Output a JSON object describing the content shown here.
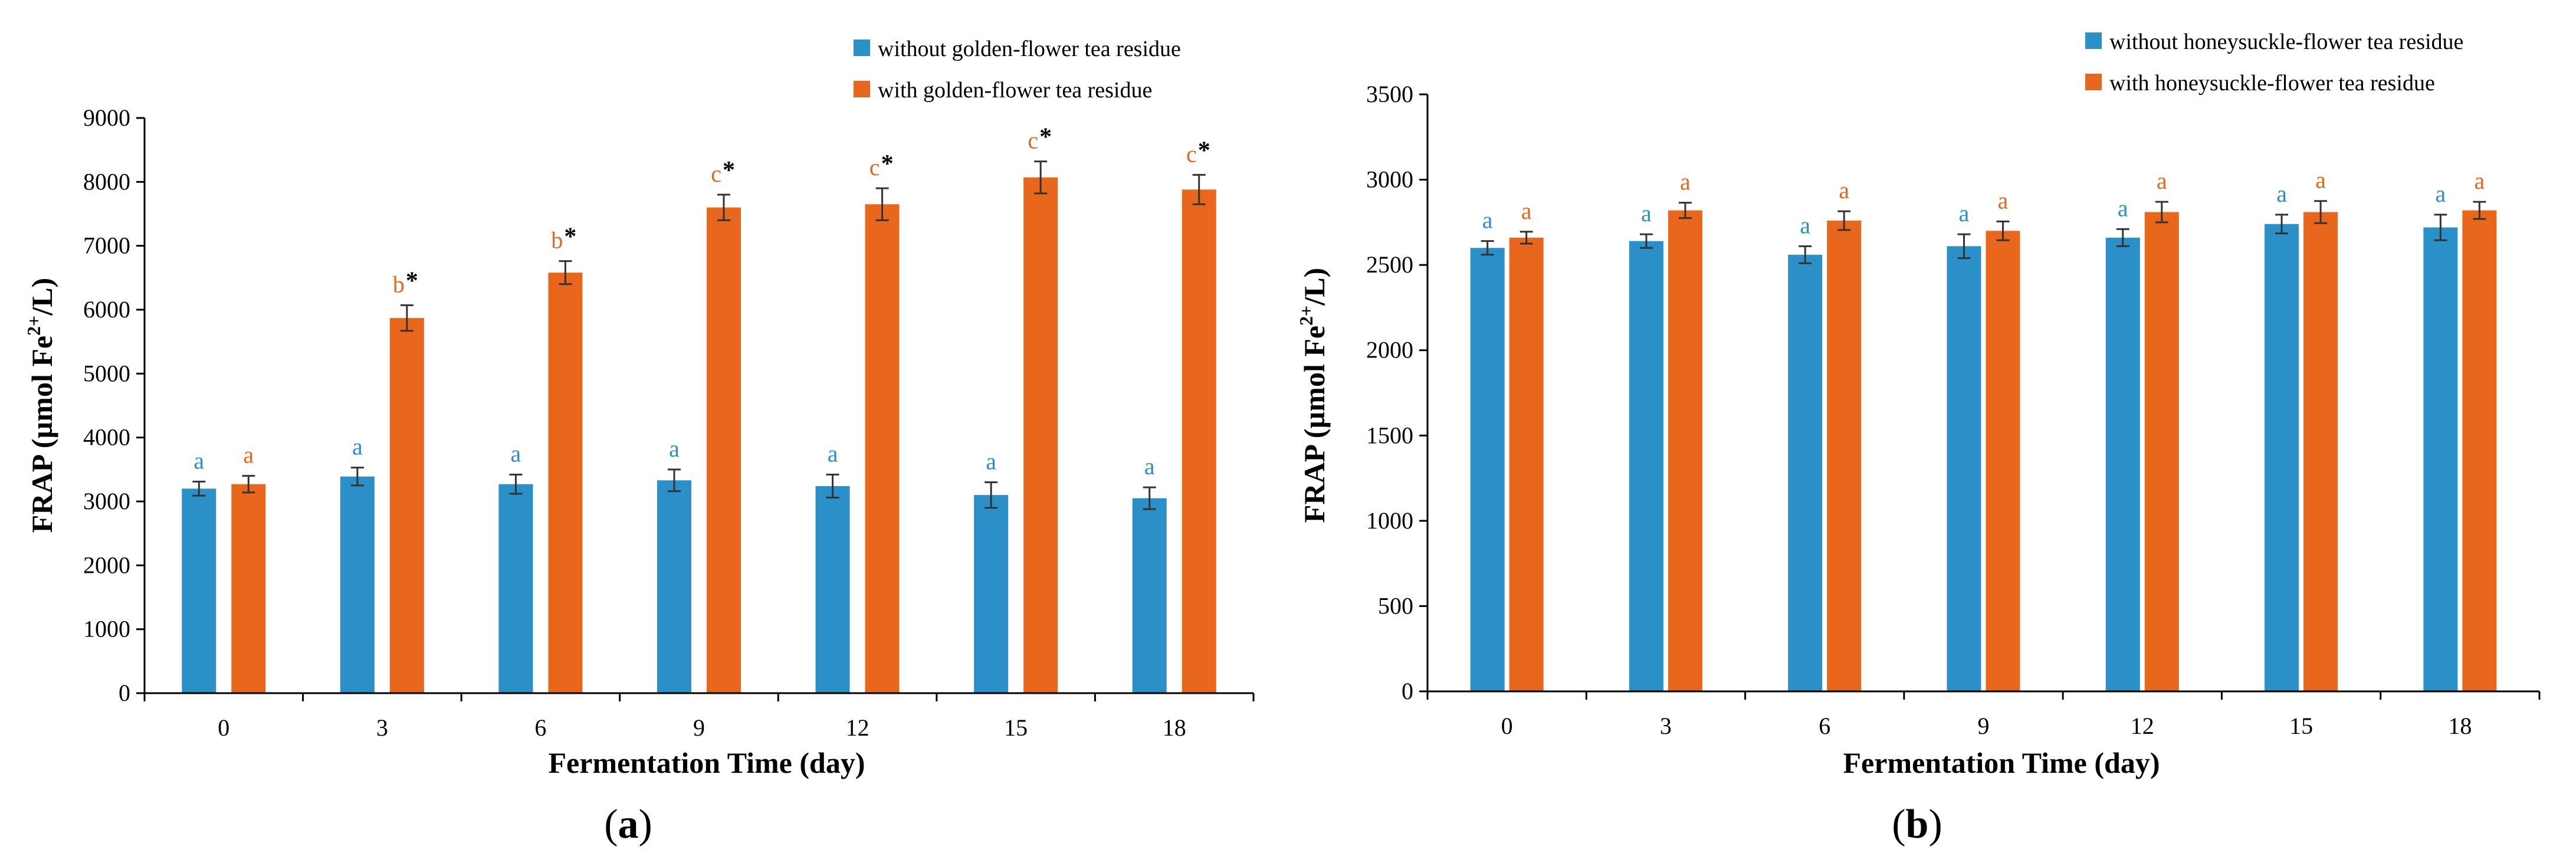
{
  "colors": {
    "without": "#2b8fc8",
    "with": "#e8671c"
  },
  "chart_data": [
    {
      "type": "bar",
      "panel_label": "a",
      "title": "",
      "xlabel": "Fermentation Time (day)",
      "ylabel_prefix": "FRAP (µmol Fe",
      "ylabel_sup": "2+",
      "ylabel_suffix": "/L)",
      "ylim": [
        0,
        9000
      ],
      "yticks": [
        0,
        1000,
        2000,
        3000,
        4000,
        5000,
        6000,
        7000,
        8000,
        9000
      ],
      "legend_position": "top-right",
      "categories": [
        "0",
        "3",
        "6",
        "9",
        "12",
        "15",
        "18"
      ],
      "series": [
        {
          "name": "without golden-flower tea residue",
          "color_key": "without",
          "values": [
            3200,
            3390,
            3270,
            3330,
            3240,
            3100,
            3050
          ],
          "errors": [
            110,
            140,
            150,
            170,
            180,
            200,
            170
          ],
          "letters": [
            "a",
            "a",
            "a",
            "a",
            "a",
            "a",
            "a"
          ],
          "stars": [
            false,
            false,
            false,
            false,
            false,
            false,
            false
          ]
        },
        {
          "name": "with golden-flower tea residue",
          "color_key": "with",
          "values": [
            3270,
            5870,
            6580,
            7600,
            7650,
            8070,
            7880
          ],
          "errors": [
            130,
            200,
            180,
            200,
            250,
            250,
            230
          ],
          "letters": [
            "a",
            "b",
            "b",
            "c",
            "c",
            "c",
            "c"
          ],
          "stars": [
            false,
            true,
            true,
            true,
            true,
            true,
            true
          ]
        }
      ]
    },
    {
      "type": "bar",
      "panel_label": "b",
      "title": "",
      "xlabel": "Fermentation Time (day)",
      "ylabel_prefix": "FRAP (µmol Fe",
      "ylabel_sup": "2+",
      "ylabel_suffix": "/L)",
      "ylim": [
        0,
        3500
      ],
      "yticks": [
        0,
        500,
        1000,
        1500,
        2000,
        2500,
        3000,
        3500
      ],
      "legend_position": "top-right",
      "categories": [
        "0",
        "3",
        "6",
        "9",
        "12",
        "15",
        "18"
      ],
      "series": [
        {
          "name": "without honeysuckle-flower tea residue",
          "color_key": "without",
          "values": [
            2600,
            2640,
            2560,
            2610,
            2660,
            2740,
            2720
          ],
          "errors": [
            40,
            40,
            50,
            70,
            50,
            55,
            75
          ],
          "letters": [
            "a",
            "a",
            "a",
            "a",
            "a",
            "a",
            "a"
          ],
          "stars": [
            false,
            false,
            false,
            false,
            false,
            false,
            false
          ]
        },
        {
          "name": "with honeysuckle-flower tea residue",
          "color_key": "with",
          "values": [
            2660,
            2820,
            2760,
            2700,
            2810,
            2810,
            2820
          ],
          "errors": [
            35,
            45,
            55,
            55,
            60,
            65,
            50
          ],
          "letters": [
            "a",
            "a",
            "a",
            "a",
            "a",
            "a",
            "a"
          ],
          "stars": [
            false,
            false,
            false,
            false,
            false,
            false,
            false
          ]
        }
      ]
    }
  ]
}
